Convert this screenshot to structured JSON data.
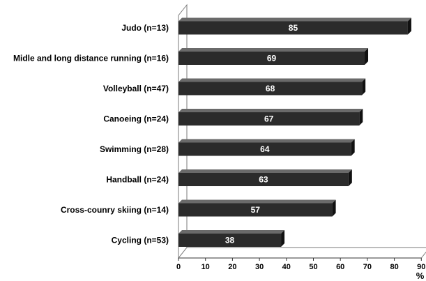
{
  "chart_data": {
    "type": "bar",
    "orientation": "horizontal",
    "categories": [
      "Judo (n=13)",
      "Midle and long distance running (n=16)",
      "Volleyball (n=47)",
      "Canoeing (n=24)",
      "Swimming (n=28)",
      "Handball (n=24)",
      "Cross-counry skiing (n=14)",
      "Cycling (n=53)"
    ],
    "values": [
      85,
      69,
      68,
      67,
      64,
      63,
      57,
      38
    ],
    "value_labels": [
      "85",
      "69",
      "68",
      "67",
      "64",
      "63",
      "57",
      "38"
    ],
    "xlabel": "%",
    "xlim": [
      0,
      90
    ],
    "xticks": [
      "0",
      "10",
      "20",
      "30",
      "40",
      "50",
      "60",
      "70",
      "80",
      "90"
    ],
    "grid": false,
    "legend": "none",
    "style": "3d",
    "colors": {
      "bar_front": "#2b2b2b",
      "bar_top": "#6a6a6a",
      "bar_side": "#111111",
      "value_text": "#ffffff"
    }
  }
}
